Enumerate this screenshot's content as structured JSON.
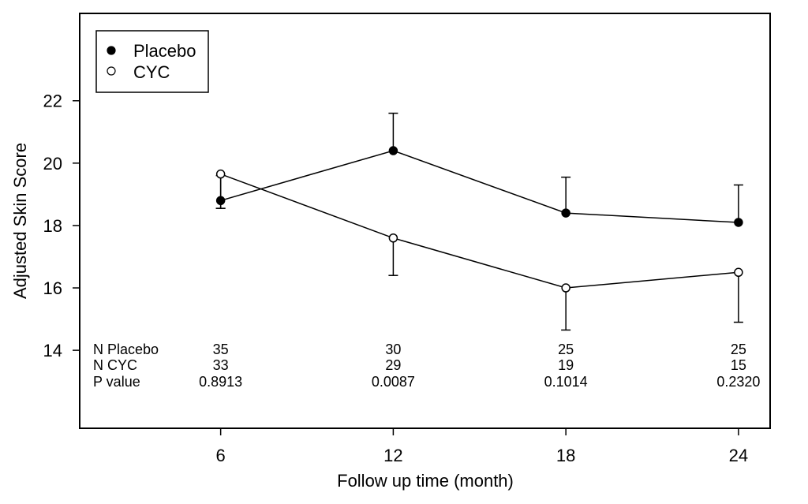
{
  "chart_data": {
    "type": "line",
    "title": "",
    "xlabel": "Follow up time (month)",
    "ylabel": "Adjusted Skin Score",
    "x": [
      6,
      12,
      18,
      24
    ],
    "xlim": [
      1.1,
      25.1
    ],
    "ylim": [
      11.5,
      24.8
    ],
    "xticks": [
      6,
      12,
      18,
      24
    ],
    "yticks": [
      14,
      16,
      18,
      20,
      22
    ],
    "grid": false,
    "legend_position": "top-left",
    "series": [
      {
        "name": "Placebo",
        "marker": "filled-circle",
        "values": [
          18.8,
          20.4,
          18.4,
          18.1
        ],
        "error_upper": [
          19.6,
          21.6,
          19.55,
          19.3
        ],
        "error_lower": [
          18.55,
          20.4,
          18.4,
          18.1
        ]
      },
      {
        "name": "CYC",
        "marker": "open-circle",
        "values": [
          19.65,
          17.6,
          16.0,
          16.5
        ],
        "error_upper": [
          19.65,
          17.6,
          16.0,
          16.5
        ],
        "error_lower": [
          18.55,
          16.4,
          14.65,
          14.9
        ]
      }
    ],
    "table": {
      "rows": [
        {
          "label": "N Placebo",
          "values": [
            "35",
            "30",
            "25",
            "25"
          ]
        },
        {
          "label": "N CYC",
          "values": [
            "33",
            "29",
            "19",
            "15"
          ]
        },
        {
          "label": "P value",
          "values": [
            "0.8913",
            "0.0087",
            "0.1014",
            "0.2320"
          ]
        }
      ]
    }
  }
}
